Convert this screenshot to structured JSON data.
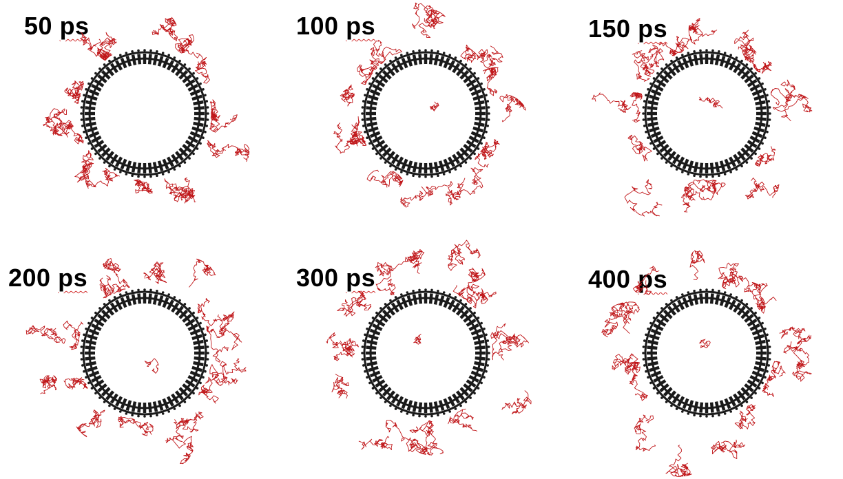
{
  "figure": {
    "panels": [
      {
        "label": "50",
        "unit": "ps"
      },
      {
        "label": "100",
        "unit": "ps"
      },
      {
        "label": "150",
        "unit": "ps"
      },
      {
        "label": "200",
        "unit": "ps"
      },
      {
        "label": "300",
        "unit": "ps"
      },
      {
        "label": "400",
        "unit": "ps"
      }
    ],
    "colors": {
      "membrane": "#1a1a1a",
      "trajectory": "#c0171a",
      "background": "#ffffff"
    }
  }
}
